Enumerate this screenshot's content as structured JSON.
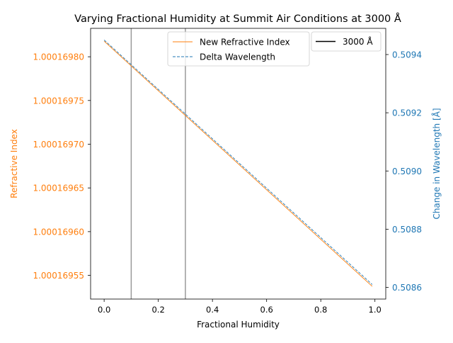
{
  "chart_data": {
    "type": "line",
    "title": "Varying Fractional Humidity at Summit Air Conditions at 3000 Å",
    "xlabel": "Fractional Humidity",
    "ylabel_left": "Refractive Index",
    "ylabel_right": "Change in Wavelength [Å]",
    "xlim": [
      -0.05,
      1.04
    ],
    "ylim_left": [
      1.0001695229,
      1.0001698325
    ],
    "ylim_right": [
      0.50856,
      0.50949
    ],
    "x_ticks": [
      0.0,
      0.2,
      0.4,
      0.6,
      0.8,
      1.0
    ],
    "x_tick_labels": [
      "0.0",
      "0.2",
      "0.4",
      "0.6",
      "0.8",
      "1.0"
    ],
    "y_left_ticks": [
      1.00016955,
      1.0001696,
      1.00016965,
      1.0001697,
      1.00016975,
      1.0001698
    ],
    "y_left_tick_labels": [
      "1.00016955",
      "1.00016960",
      "1.00016965",
      "1.00016970",
      "1.00016975",
      "1.00016980"
    ],
    "y_right_ticks": [
      0.5086,
      0.5088,
      0.509,
      0.5092,
      0.5094
    ],
    "y_right_tick_labels": [
      "0.5086",
      "0.5088",
      "0.5090",
      "0.5092",
      "0.5094"
    ],
    "vlines": [
      0.1,
      0.3
    ],
    "grid": false,
    "series": [
      {
        "name": "New Refractive Index",
        "axis": "left",
        "color": "#ff7f0e",
        "style": "solid",
        "x": [
          0.0,
          0.99
        ],
        "y": [
          1.00016981783,
          1.00016953745
        ]
      },
      {
        "name": "Delta Wavelength",
        "axis": "right",
        "color": "#1f77b4",
        "style": "dashed",
        "x": [
          0.0,
          0.99
        ],
        "y": [
          0.50945,
          0.50861
        ]
      }
    ],
    "legend_left": {
      "placement": "top-center",
      "entries": [
        "New Refractive Index",
        "Delta Wavelength"
      ]
    },
    "legend_right": {
      "placement": "top-right",
      "entries": [
        {
          "label": "3000 Å",
          "color": "#000000"
        }
      ]
    },
    "colors": {
      "left_axis": "#ff7f0e",
      "right_axis": "#1f77b4",
      "vline": "#999999"
    }
  }
}
